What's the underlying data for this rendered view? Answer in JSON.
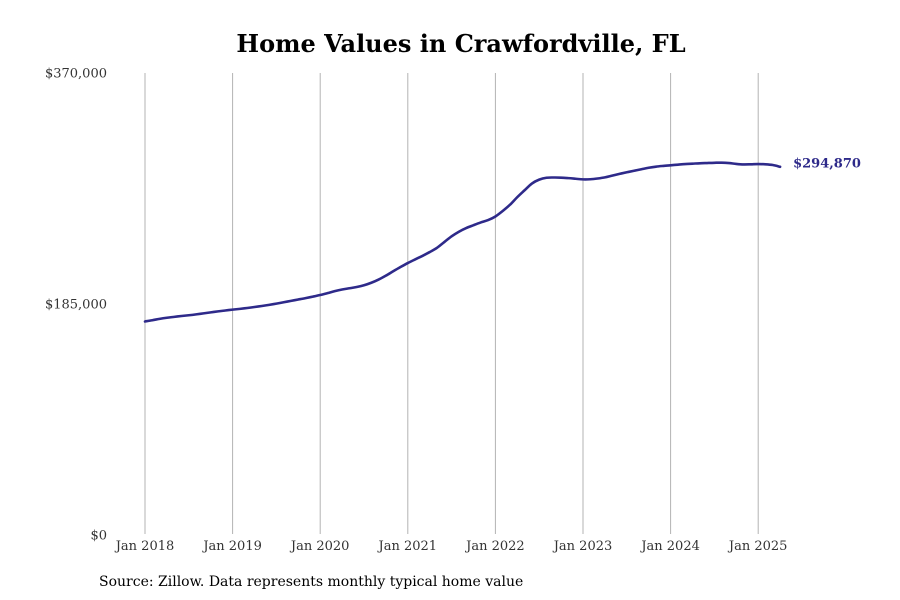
{
  "chart_data": {
    "type": "line",
    "title": "Home Values in Crawfordville, FL",
    "xlabel": "",
    "ylabel": "",
    "ylim": [
      0,
      370000
    ],
    "y_ticks": [
      0,
      185000,
      370000
    ],
    "y_tick_labels": [
      "$0",
      "$185,000",
      "$370,000"
    ],
    "x_ticks": [
      "Jan 2018",
      "Jan 2019",
      "Jan 2020",
      "Jan 2021",
      "Jan 2022",
      "Jan 2023",
      "Jan 2024",
      "Jan 2025"
    ],
    "xlim": [
      "2018-01",
      "2025-04"
    ],
    "grid": "vertical",
    "line_color": "#2e2a8a",
    "end_label": "$294,870",
    "series": [
      {
        "x": [
          "2018-01",
          "2018-02",
          "2018-03",
          "2018-04",
          "2018-05",
          "2018-06",
          "2018-07",
          "2018-08",
          "2018-09",
          "2018-10",
          "2018-11",
          "2018-12",
          "2019-01",
          "2019-02",
          "2019-03",
          "2019-04",
          "2019-05",
          "2019-06",
          "2019-07",
          "2019-08",
          "2019-09",
          "2019-10",
          "2019-11",
          "2019-12",
          "2020-01",
          "2020-02",
          "2020-03",
          "2020-04",
          "2020-05",
          "2020-06",
          "2020-07",
          "2020-08",
          "2020-09",
          "2020-10",
          "2020-11",
          "2020-12",
          "2021-01",
          "2021-02",
          "2021-03",
          "2021-04",
          "2021-05",
          "2021-06",
          "2021-07",
          "2021-08",
          "2021-09",
          "2021-10",
          "2021-11",
          "2021-12",
          "2022-01",
          "2022-02",
          "2022-03",
          "2022-04",
          "2022-05",
          "2022-06",
          "2022-07",
          "2022-08",
          "2022-09",
          "2022-10",
          "2022-11",
          "2022-12",
          "2023-01",
          "2023-02",
          "2023-03",
          "2023-04",
          "2023-05",
          "2023-06",
          "2023-07",
          "2023-08",
          "2023-09",
          "2023-10",
          "2023-11",
          "2023-12",
          "2024-01",
          "2024-02",
          "2024-03",
          "2024-04",
          "2024-05",
          "2024-06",
          "2024-07",
          "2024-08",
          "2024-09",
          "2024-10",
          "2024-11",
          "2024-12",
          "2025-01",
          "2025-02",
          "2025-03",
          "2025-04"
        ],
        "values": [
          171000,
          172000,
          173100,
          174000,
          174700,
          175400,
          176000,
          176700,
          177500,
          178300,
          179100,
          179800,
          180500,
          181100,
          181800,
          182600,
          183400,
          184300,
          185300,
          186400,
          187500,
          188600,
          189700,
          190900,
          192200,
          193700,
          195300,
          196600,
          197600,
          198600,
          200000,
          202000,
          204600,
          207700,
          211200,
          214600,
          217800,
          220700,
          223500,
          226600,
          230000,
          234600,
          239200,
          242900,
          245800,
          248100,
          250300,
          252200,
          255100,
          259500,
          264500,
          270600,
          276100,
          281500,
          284600,
          286100,
          286300,
          286200,
          285800,
          285300,
          284800,
          284900,
          285500,
          286400,
          287800,
          289200,
          290500,
          291700,
          292900,
          294100,
          295000,
          295600,
          296100,
          296600,
          297100,
          297400,
          297700,
          297900,
          298100,
          298200,
          297900,
          297200,
          296800,
          296900,
          297100,
          296900,
          296300,
          294870
        ]
      }
    ]
  },
  "footer": {
    "source": "Source: Zillow. Data represents monthly typical home value"
  }
}
